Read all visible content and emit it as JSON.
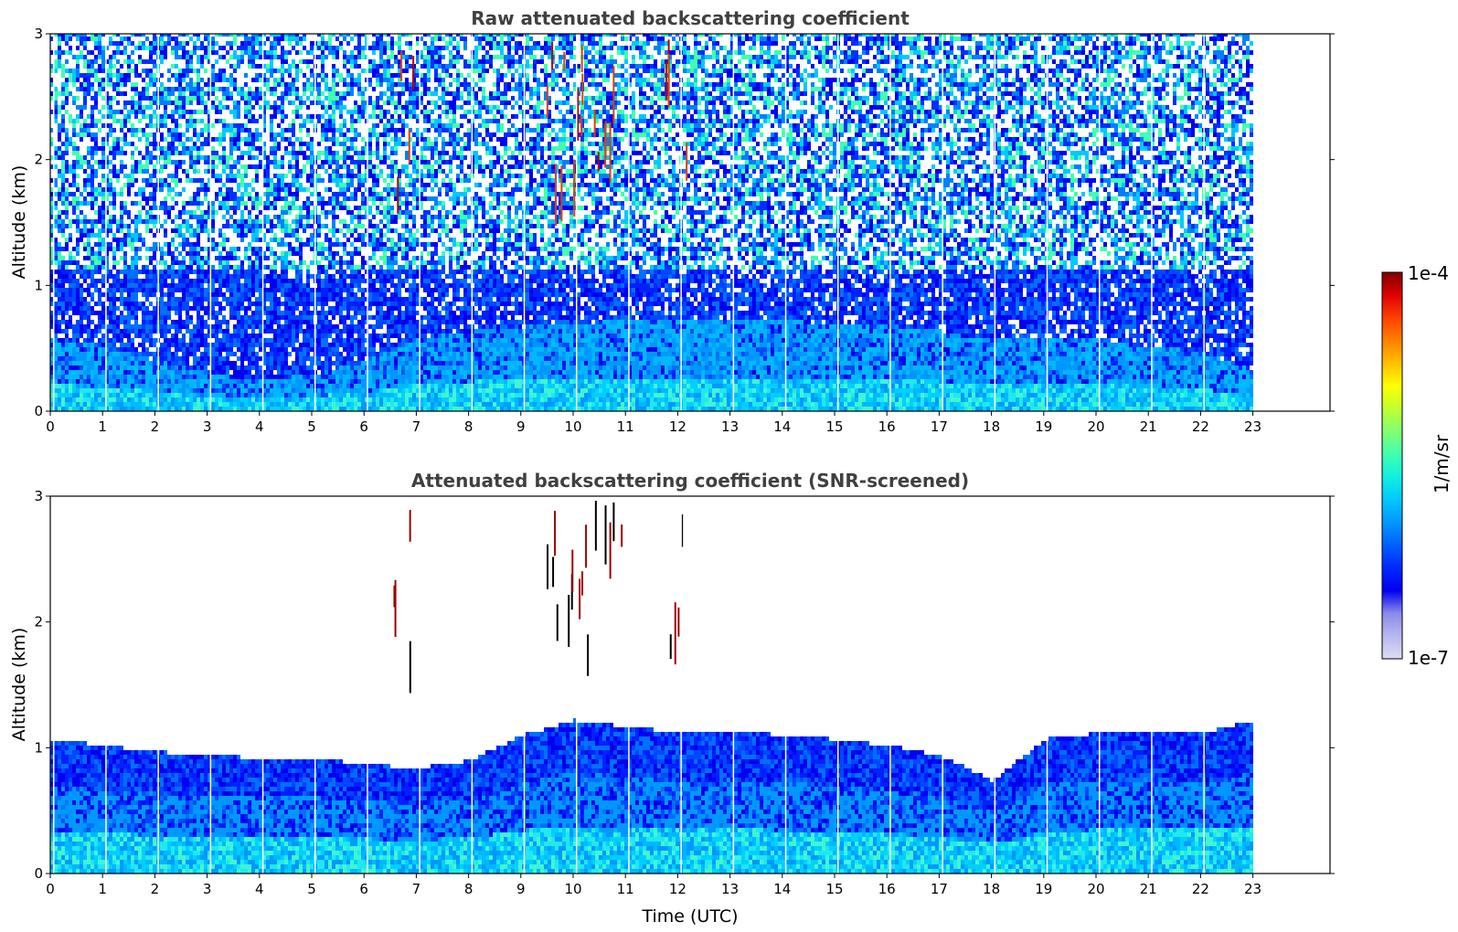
{
  "chart_data": [
    {
      "type": "heatmap",
      "title": "Raw attenuated backscattering coefficient",
      "xlabel": "",
      "ylabel": "Altitude (km)",
      "xlim": [
        0,
        24
      ],
      "ylim": [
        0,
        3
      ],
      "x_ticks": [
        "0",
        "1",
        "2",
        "3",
        "4",
        "5",
        "6",
        "7",
        "8",
        "9",
        "10",
        "11",
        "12",
        "13",
        "14",
        "15",
        "16",
        "17",
        "18",
        "19",
        "20",
        "21",
        "22",
        "23"
      ],
      "y_ticks": [
        "0",
        "1",
        "2",
        "3"
      ],
      "data_extent_hours": [
        0,
        23
      ],
      "description_values": {
        "boundary_layer_top_km": [
          [
            0,
            0.55
          ],
          [
            1,
            0.5
          ],
          [
            2,
            0.38
          ],
          [
            3,
            0.28
          ],
          [
            4,
            0.22
          ],
          [
            5,
            0.28
          ],
          [
            6,
            0.38
          ],
          [
            7,
            0.55
          ],
          [
            8,
            0.62
          ],
          [
            9,
            0.65
          ],
          [
            10,
            0.68
          ],
          [
            11,
            0.7
          ],
          [
            12,
            0.7
          ],
          [
            13,
            0.72
          ],
          [
            14,
            0.7
          ],
          [
            15,
            0.68
          ],
          [
            16,
            0.66
          ],
          [
            17,
            0.62
          ],
          [
            18,
            0.55
          ],
          [
            19,
            0.58
          ],
          [
            20,
            0.55
          ],
          [
            21,
            0.5
          ],
          [
            22,
            0.45
          ],
          [
            23,
            0.3
          ]
        ],
        "cloud_events_hours": [
          6.8,
          9.6,
          10.0,
          10.3,
          10.8,
          12.0
        ]
      }
    },
    {
      "type": "heatmap",
      "title": "Attenuated backscattering coefficient (SNR-screened)",
      "xlabel": "Time (UTC)",
      "ylabel": "Altitude (km)",
      "xlim": [
        0,
        24
      ],
      "ylim": [
        0,
        3
      ],
      "x_ticks": [
        "0",
        "1",
        "2",
        "3",
        "4",
        "5",
        "6",
        "7",
        "8",
        "9",
        "10",
        "11",
        "12",
        "13",
        "14",
        "15",
        "16",
        "17",
        "18",
        "19",
        "20",
        "21",
        "22",
        "23"
      ],
      "y_ticks": [
        "0",
        "1",
        "2",
        "3"
      ],
      "data_extent_hours": [
        0,
        23
      ],
      "description_values": {
        "signal_top_km": [
          [
            0,
            1.05
          ],
          [
            1,
            1.0
          ],
          [
            2,
            0.95
          ],
          [
            3,
            0.92
          ],
          [
            4,
            0.9
          ],
          [
            5,
            0.9
          ],
          [
            6,
            0.85
          ],
          [
            7,
            0.82
          ],
          [
            8,
            0.88
          ],
          [
            9,
            1.08
          ],
          [
            10,
            1.2
          ],
          [
            11,
            1.15
          ],
          [
            12,
            1.1
          ],
          [
            13,
            1.12
          ],
          [
            14,
            1.08
          ],
          [
            15,
            1.05
          ],
          [
            16,
            1.0
          ],
          [
            17,
            0.92
          ],
          [
            18,
            0.72
          ],
          [
            19,
            1.05
          ],
          [
            20,
            1.1
          ],
          [
            21,
            1.12
          ],
          [
            22,
            1.1
          ],
          [
            23,
            1.2
          ]
        ]
      }
    }
  ],
  "colorbar": {
    "label": "1/m/sr",
    "max_label": "1e-4",
    "min_label": "1e-7",
    "scale": "log",
    "colors": [
      "#dcdcf5",
      "#b8b8ee",
      "#8a8aec",
      "#0000f0",
      "#0028ff",
      "#0060ff",
      "#0098ff",
      "#00c8ff",
      "#10f0e0",
      "#40ffb0",
      "#80ff70",
      "#c0ff30",
      "#ffff00",
      "#ffc000",
      "#ff8000",
      "#ff4000",
      "#e00000",
      "#800000"
    ]
  }
}
